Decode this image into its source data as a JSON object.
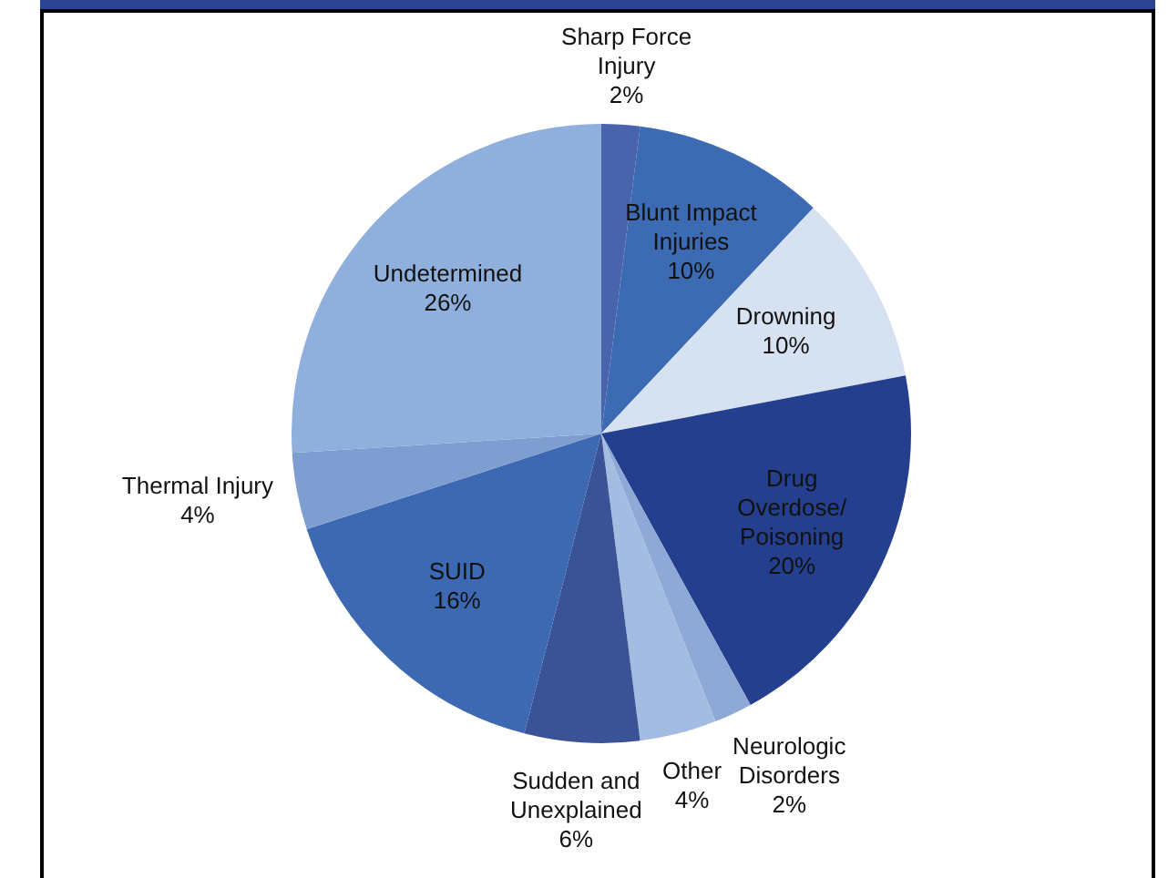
{
  "chart_data": {
    "type": "pie",
    "categories": [
      "Sharp Force Injury",
      "Blunt Impact Injuries",
      "Drowning",
      "Drug Overdose/Poisoning",
      "Neurologic Disorders",
      "Other",
      "Sudden and Unexplained",
      "SUID",
      "Thermal Injury",
      "Undetermined"
    ],
    "values": [
      2,
      10,
      10,
      20,
      2,
      4,
      6,
      16,
      4,
      26
    ],
    "value_labels": [
      "2%",
      "10%",
      "10%",
      "20%",
      "2%",
      "4%",
      "6%",
      "16%",
      "4%",
      "26%"
    ],
    "colors": [
      "#4a63ad",
      "#3d6bb3",
      "#d6e1f1",
      "#243f8e",
      "#8ea9d6",
      "#a3bde2",
      "#3a5396",
      "#3c69b1",
      "#7e9dd0",
      "#8fafdc"
    ]
  }
}
